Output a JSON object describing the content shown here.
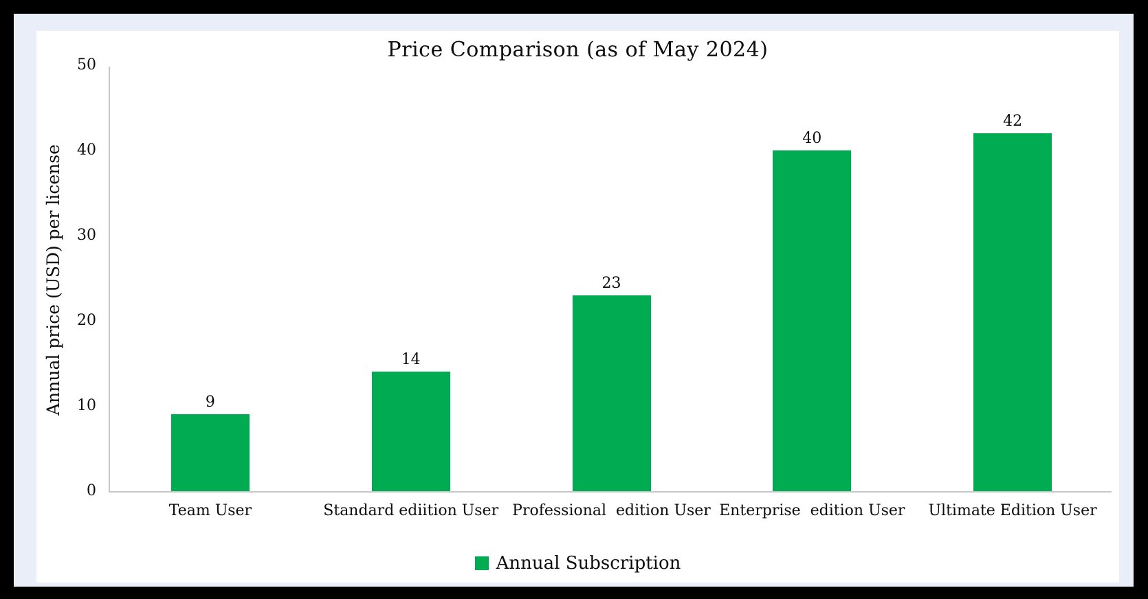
{
  "chart_data": {
    "type": "bar",
    "title": "Price Comparison (as of May 2024)",
    "xlabel": "",
    "ylabel": "Annual price (USD) per license",
    "categories": [
      "Team User",
      "Standard ediition User",
      "Professional  edition User",
      "Enterprise  edition User",
      "Ultimate Edition User"
    ],
    "series": [
      {
        "name": "Annual Subscription",
        "values": [
          9,
          14,
          23,
          40,
          42
        ],
        "color": "#00AB51"
      }
    ],
    "bar_value_labels": [
      "9",
      "14",
      "23",
      "40",
      "42"
    ],
    "ylim": [
      0,
      50
    ],
    "yticks": [
      0,
      10,
      20,
      30,
      40,
      50
    ],
    "grid": false,
    "legend_position": "bottom"
  },
  "colors": {
    "bar": "#00AB51",
    "axis_line": "#C7C7C7",
    "frame_background": "#000000",
    "margin_background": "#E9EEF9",
    "panel_background": "#FFFFFF",
    "text": "#0D0D0D"
  }
}
